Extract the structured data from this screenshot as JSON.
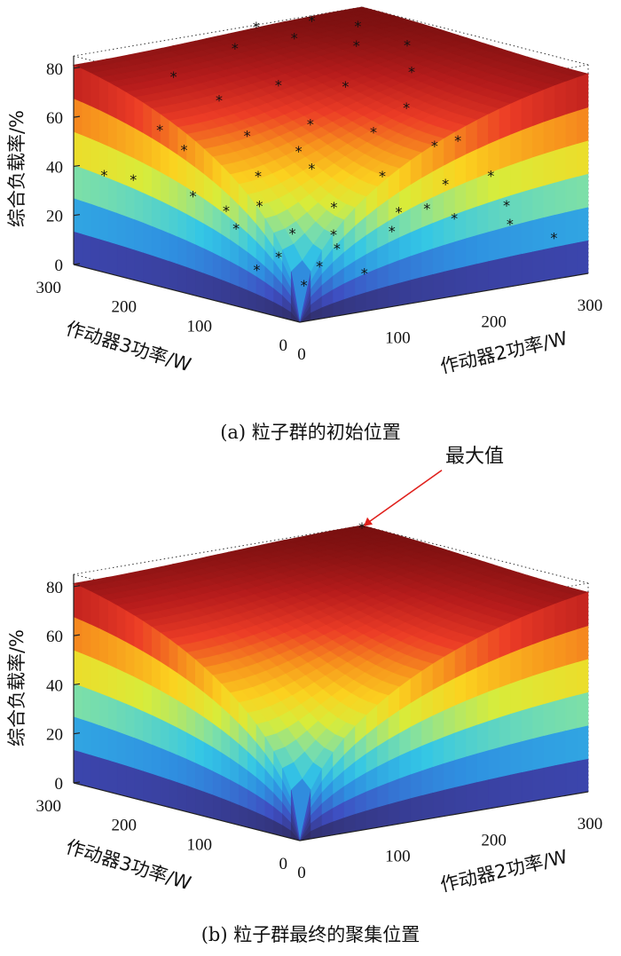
{
  "chart_data": [
    {
      "type": "surface",
      "panel": "a",
      "caption": "(a) 粒子群的初始位置",
      "zlabel": "综合负载率/%",
      "xlabel": "作动器2功率/W",
      "ylabel": "作动器3功率/W",
      "xlim": [
        0,
        300
      ],
      "ylim": [
        0,
        300
      ],
      "zlim": [
        0,
        85
      ],
      "zticks": [
        "0",
        "20",
        "40",
        "60",
        "80"
      ],
      "xticks": [
        "0",
        "100",
        "200",
        "300"
      ],
      "yticks": [
        "0",
        "100",
        "200",
        "300"
      ],
      "colormap": [
        "#2e2a5e",
        "#3f4cc0",
        "#2f8fe0",
        "#33c6e6",
        "#7fe0a6",
        "#d8ec3a",
        "#fbd21f",
        "#f7941d",
        "#ec3c26",
        "#b71c1c",
        "#7a1010"
      ],
      "markers": [
        {
          "x2": 20,
          "x3": 20,
          "z": 12
        },
        {
          "x2": 40,
          "x3": 25,
          "z": 18
        },
        {
          "x2": 25,
          "x3": 60,
          "z": 20
        },
        {
          "x2": 70,
          "x3": 40,
          "z": 22
        },
        {
          "x2": 55,
          "x3": 80,
          "z": 26
        },
        {
          "x2": 90,
          "x3": 70,
          "z": 24
        },
        {
          "x2": 20,
          "x3": 110,
          "z": 28
        },
        {
          "x2": 60,
          "x3": 130,
          "z": 33
        },
        {
          "x2": 110,
          "x3": 95,
          "z": 32
        },
        {
          "x2": 150,
          "x3": 60,
          "z": 30
        },
        {
          "x2": 200,
          "x3": 50,
          "z": 25
        },
        {
          "x2": 250,
          "x3": 40,
          "z": 20
        },
        {
          "x2": 30,
          "x3": 180,
          "z": 35
        },
        {
          "x2": 90,
          "x3": 170,
          "z": 40
        },
        {
          "x2": 130,
          "x3": 150,
          "z": 42
        },
        {
          "x2": 180,
          "x3": 120,
          "z": 38
        },
        {
          "x2": 230,
          "x3": 100,
          "z": 33
        },
        {
          "x2": 270,
          "x3": 70,
          "z": 24
        },
        {
          "x2": 280,
          "x3": 20,
          "z": 14
        },
        {
          "x2": 15,
          "x3": 240,
          "z": 38
        },
        {
          "x2": 60,
          "x3": 230,
          "z": 48
        },
        {
          "x2": 110,
          "x3": 210,
          "z": 52
        },
        {
          "x2": 160,
          "x3": 190,
          "z": 55
        },
        {
          "x2": 210,
          "x3": 170,
          "z": 50
        },
        {
          "x2": 250,
          "x3": 140,
          "z": 44
        },
        {
          "x2": 285,
          "x3": 110,
          "z": 32
        },
        {
          "x2": 20,
          "x3": 285,
          "z": 36
        },
        {
          "x2": 70,
          "x3": 275,
          "z": 52
        },
        {
          "x2": 120,
          "x3": 260,
          "z": 62
        },
        {
          "x2": 170,
          "x3": 245,
          "z": 66
        },
        {
          "x2": 220,
          "x3": 220,
          "z": 64
        },
        {
          "x2": 260,
          "x3": 190,
          "z": 55
        },
        {
          "x2": 290,
          "x3": 160,
          "z": 42
        },
        {
          "x2": 100,
          "x3": 295,
          "z": 70
        },
        {
          "x2": 160,
          "x3": 290,
          "z": 78
        },
        {
          "x2": 210,
          "x3": 275,
          "z": 80
        },
        {
          "x2": 255,
          "x3": 250,
          "z": 76
        },
        {
          "x2": 285,
          "x3": 215,
          "z": 66
        },
        {
          "x2": 140,
          "x3": 180,
          "z": 46
        },
        {
          "x2": 195,
          "x3": 80,
          "z": 27
        },
        {
          "x2": 45,
          "x3": 155,
          "z": 30
        },
        {
          "x2": 240,
          "x3": 290,
          "z": 84
        },
        {
          "x2": 190,
          "x3": 300,
          "z": 84
        },
        {
          "x2": 280,
          "x3": 280,
          "z": 80
        },
        {
          "x2": 300,
          "x3": 240,
          "z": 74
        },
        {
          "x2": 135,
          "x3": 50,
          "z": 24
        },
        {
          "x2": 75,
          "x3": 10,
          "z": 14
        },
        {
          "x2": 10,
          "x3": 70,
          "z": 15
        }
      ]
    },
    {
      "type": "surface",
      "panel": "b",
      "caption": "(b) 粒子群最终的聚集位置",
      "zlabel": "综合负载率/%",
      "xlabel": "作动器2功率/W",
      "ylabel": "作动器3功率/W",
      "xlim": [
        0,
        300
      ],
      "ylim": [
        0,
        300
      ],
      "zlim": [
        0,
        85
      ],
      "zticks": [
        "0",
        "20",
        "40",
        "60",
        "80"
      ],
      "xticks": [
        "0",
        "100",
        "200",
        "300"
      ],
      "yticks": [
        "0",
        "100",
        "200",
        "300"
      ],
      "colormap": [
        "#2e2a5e",
        "#3f4cc0",
        "#2f8fe0",
        "#33c6e6",
        "#7fe0a6",
        "#d8ec3a",
        "#fbd21f",
        "#f7941d",
        "#ec3c26",
        "#b71c1c",
        "#7a1010"
      ],
      "annotation": {
        "text": "最大值",
        "x2": 300,
        "x3": 300,
        "z": 84
      },
      "markers": [
        {
          "x2": 300,
          "x3": 300,
          "z": 84
        }
      ]
    }
  ],
  "annotation_color": "#e0201c"
}
